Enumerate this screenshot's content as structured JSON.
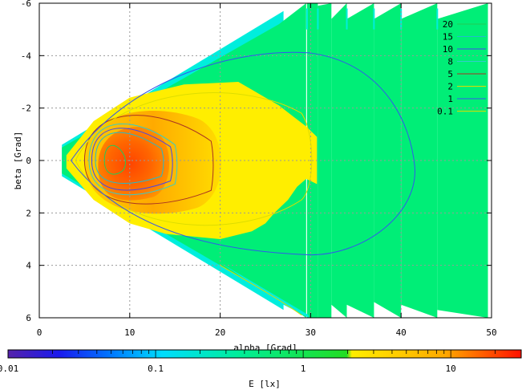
{
  "chart_data": {
    "type": "heatmap",
    "xlabel": "alpha [Grad]",
    "ylabel": "beta [Grad]",
    "xlim": [
      0,
      50
    ],
    "ylim": [
      6,
      -6
    ],
    "x_ticks": [
      "0",
      "10",
      "20",
      "30",
      "40",
      "50"
    ],
    "y_ticks": [
      "-6",
      "-4",
      "-2",
      "0",
      "2",
      "4",
      "6"
    ],
    "grid": true,
    "legend_position": "top-right",
    "contour_levels": [
      {
        "label": "20",
        "color": "#22cc55"
      },
      {
        "label": "15",
        "color": "#22bbcc"
      },
      {
        "label": "10",
        "color": "#4444ee"
      },
      {
        "label": "8",
        "color": "#33cccc"
      },
      {
        "label": "5",
        "color": "#aa3322"
      },
      {
        "label": "2",
        "color": "#dddd00"
      },
      {
        "label": "1",
        "color": "#3355ee"
      },
      {
        "label": "0.1",
        "color": "#dddd00"
      }
    ],
    "colorbar": {
      "label": "E [lx]",
      "scale": "log",
      "range": [
        0.01,
        30
      ],
      "tick_labels": [
        "0.01",
        "0.1",
        "1",
        "10"
      ]
    },
    "regions": [
      {
        "name": "field",
        "color": "#00ee77"
      },
      {
        "name": "edge",
        "color": "#00eedd"
      },
      {
        "name": "mid",
        "color": "#ffee00"
      },
      {
        "name": "inner",
        "color": "#ffaa00"
      },
      {
        "name": "core",
        "color": "#ff5500"
      }
    ]
  }
}
